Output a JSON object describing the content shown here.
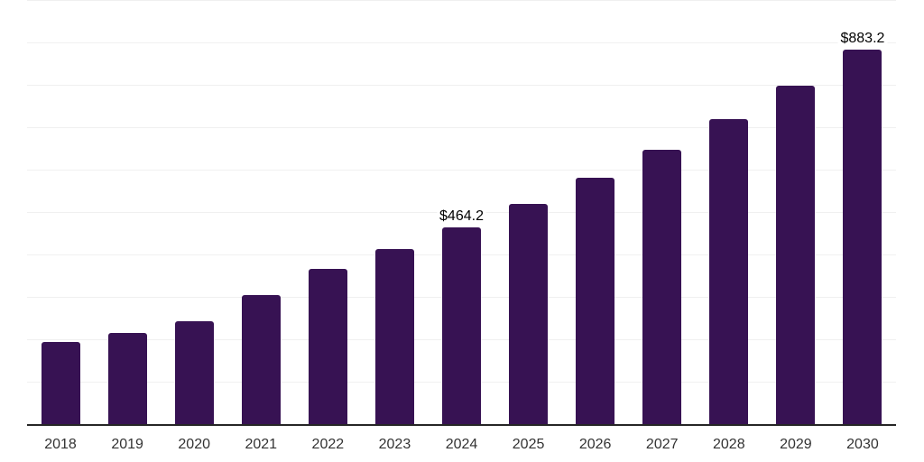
{
  "chart_data": {
    "type": "bar",
    "title": "",
    "xlabel": "",
    "ylabel": "",
    "categories": [
      "2018",
      "2019",
      "2020",
      "2021",
      "2022",
      "2023",
      "2024",
      "2025",
      "2026",
      "2027",
      "2028",
      "2029",
      "2030"
    ],
    "values": [
      194,
      215,
      243,
      304,
      366,
      413,
      464.2,
      519,
      581,
      647,
      720,
      798,
      883.2
    ],
    "data_labels": [
      null,
      null,
      null,
      null,
      null,
      null,
      "$464.2",
      null,
      null,
      null,
      null,
      null,
      "$883.2"
    ],
    "ylim": [
      0,
      1000
    ],
    "grid_step": 100,
    "grid": "horizontal-only",
    "legend": "none",
    "colors": {
      "bar": "#371253",
      "gridline": "#f0f0f0",
      "axis_line": "#262626",
      "tick_label": "#333333",
      "data_label": "#000000",
      "background": "#ffffff"
    }
  }
}
